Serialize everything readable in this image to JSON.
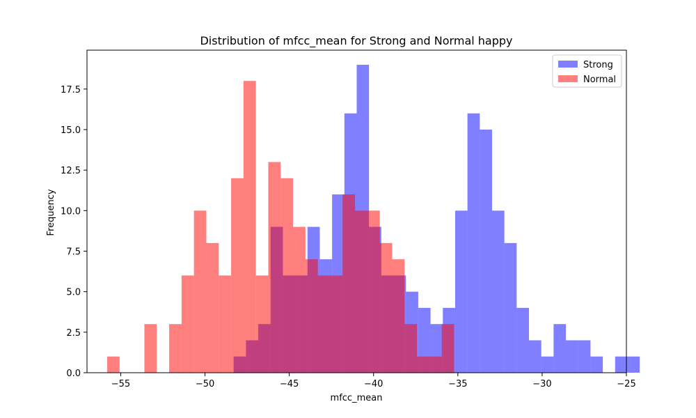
{
  "chart_data": {
    "type": "bar",
    "subtype": "overlapping-histogram",
    "title": "Distribution of mfcc_mean for Strong and Normal happy",
    "xlabel": "mfcc_mean",
    "ylabel": "Frequency",
    "xlim": [
      -57.0,
      -25.0
    ],
    "ylim": [
      0,
      19.9
    ],
    "xticks": [
      -55,
      -50,
      -45,
      -40,
      -35,
      -30,
      -25
    ],
    "xtick_labels": [
      "−55",
      "−50",
      "−45",
      "−40",
      "−35",
      "−30",
      "−25"
    ],
    "yticks": [
      0,
      2.5,
      5,
      7.5,
      10,
      12.5,
      15,
      17.5
    ],
    "ytick_labels": [
      "0.0",
      "2.5",
      "5.0",
      "7.5",
      "10.0",
      "12.5",
      "15.0",
      "17.5"
    ],
    "grid": false,
    "legend_position": "top-right",
    "alpha": 0.5,
    "series": [
      {
        "name": "Strong",
        "color": "#0000ff",
        "bin_start": -48.3,
        "bin_width": 0.73,
        "counts": [
          1,
          2,
          3,
          9,
          6,
          6,
          9,
          7,
          11,
          16,
          19,
          9,
          6,
          6,
          5,
          4,
          3,
          4,
          10,
          16,
          15,
          10,
          8,
          4,
          2,
          1,
          3,
          2,
          2,
          1,
          0,
          1,
          1
        ]
      },
      {
        "name": "Normal",
        "color": "#ff0000",
        "bin_start": -55.8,
        "bin_width": 0.735,
        "counts": [
          1,
          0,
          0,
          3,
          0,
          3,
          6,
          10,
          8,
          6,
          12,
          18,
          6,
          13,
          12,
          9,
          7,
          6,
          6,
          11,
          10,
          10,
          8,
          7,
          3,
          1,
          1,
          3
        ]
      }
    ]
  }
}
